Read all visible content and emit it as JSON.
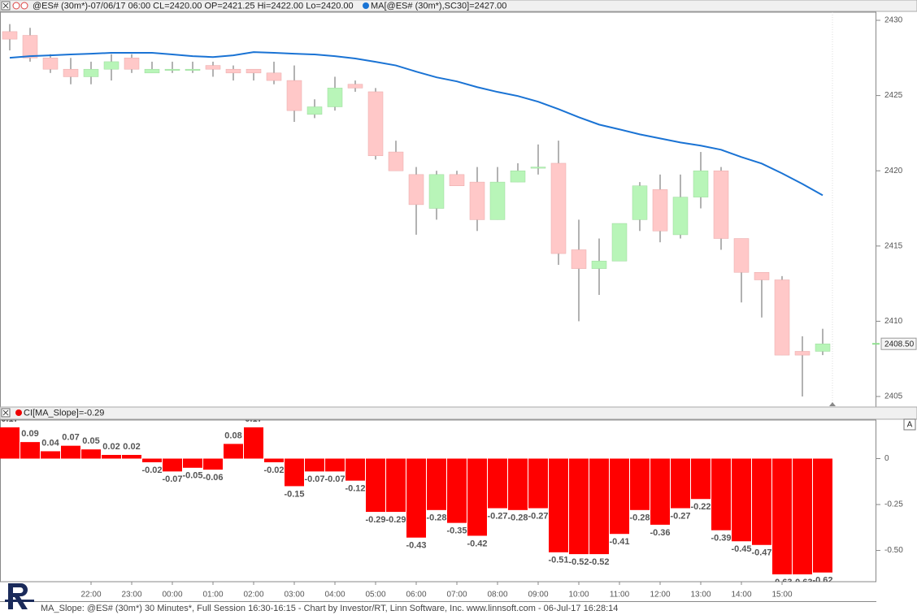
{
  "header": {
    "title": "@ES# (30m*)-07/06/17 06:00 CL=2420.00 OP=2421.25 Hi=2422.00 Lo=2420.00"
  },
  "controls": {
    "autoscale": "A"
  },
  "footer": "MA_Slope: @ES# (30m*) 30 Minutes*, Full Session 16:30-16:15 - Chart by Investor/RT, Linn Software, Inc. www.linnsoft.com - 06-Jul-17 16:28:14",
  "chart_data": [
    {
      "type": "candlestick",
      "open": [
        2429.25,
        2429.0,
        2427.5,
        2426.75,
        2426.25,
        2426.75,
        2427.5,
        2426.5,
        2426.75,
        2426.75,
        2427.0,
        2426.75,
        2426.75,
        2426.5,
        2426.0,
        2423.75,
        2424.25,
        2425.75,
        2425.25,
        2421.25,
        2419.75,
        2417.5,
        2419.75,
        2419.25,
        2416.75,
        2419.25,
        2420.25,
        2420.5,
        2414.75,
        2413.5,
        2414.0,
        2416.75,
        2418.75,
        2415.75,
        2418.25,
        2420.0,
        2415.5,
        2413.25,
        2412.75,
        2408.0,
        2408.0
      ],
      "high": [
        2429.75,
        2429.5,
        2427.75,
        2427.5,
        2427.25,
        2427.75,
        2427.75,
        2427.25,
        2427.25,
        2427.25,
        2427.25,
        2427.0,
        2426.75,
        2427.25,
        2427.0,
        2424.75,
        2426.25,
        2426.0,
        2425.5,
        2422.0,
        2420.25,
        2420.0,
        2420.0,
        2420.25,
        2420.25,
        2420.5,
        2421.75,
        2422.0,
        2416.75,
        2415.5,
        2416.5,
        2419.25,
        2419.75,
        2419.75,
        2421.25,
        2420.25,
        2415.5,
        2413.25,
        2413.0,
        2409.0,
        2409.5
      ],
      "low": [
        2428.0,
        2427.25,
        2426.5,
        2425.75,
        2425.75,
        2426.0,
        2426.5,
        2426.5,
        2426.5,
        2426.5,
        2426.25,
        2426.0,
        2426.0,
        2425.75,
        2423.25,
        2423.5,
        2424.0,
        2425.25,
        2420.75,
        2420.0,
        2415.75,
        2416.75,
        2419.0,
        2416.0,
        2416.75,
        2419.25,
        2419.75,
        2413.75,
        2410.0,
        2411.75,
        2414.0,
        2416.0,
        2415.25,
        2415.5,
        2417.5,
        2414.75,
        2411.25,
        2410.25,
        2407.75,
        2405.0,
        2407.75
      ],
      "close": [
        2428.75,
        2427.5,
        2426.75,
        2426.25,
        2426.75,
        2427.25,
        2426.75,
        2426.75,
        2426.75,
        2426.75,
        2426.75,
        2426.5,
        2426.5,
        2426.0,
        2424.0,
        2424.25,
        2425.5,
        2425.5,
        2421.0,
        2420.0,
        2417.75,
        2419.75,
        2419.0,
        2416.75,
        2419.25,
        2420.0,
        2420.25,
        2414.5,
        2413.5,
        2414.0,
        2416.5,
        2419.0,
        2416.0,
        2418.25,
        2420.0,
        2415.5,
        2413.25,
        2412.75,
        2407.75,
        2407.75,
        2408.5
      ],
      "up_color": "#b8f5b8",
      "down_color": "#ffc8c8",
      "wick_color": "#999999",
      "line": {
        "legend": "MA[@ES# (30m*),SC30]=2427.00",
        "color": "#1a73d4",
        "values": [
          2427.51,
          2427.62,
          2427.67,
          2427.73,
          2427.78,
          2427.84,
          2427.84,
          2427.84,
          2427.73,
          2427.62,
          2427.56,
          2427.67,
          2427.89,
          2427.84,
          2427.78,
          2427.73,
          2427.62,
          2427.46,
          2427.24,
          2427.0,
          2426.59,
          2426.21,
          2425.94,
          2425.56,
          2425.24,
          2424.97,
          2424.59,
          2424.1,
          2423.56,
          2423.07,
          2422.75,
          2422.42,
          2422.15,
          2421.88,
          2421.67,
          2421.4,
          2420.91,
          2420.48,
          2419.83,
          2419.13,
          2418.37
        ]
      },
      "last_price": {
        "value": 2408.5,
        "label": "2408.50",
        "color": "#8fe08f"
      },
      "ylim": [
        2404.3,
        2430.54
      ],
      "yticks": [
        2405,
        2410,
        2415,
        2420,
        2425,
        2430
      ]
    },
    {
      "type": "bar",
      "title": "CI[MA_Slope]=-0.29",
      "color": "#ff0000",
      "categories": [
        null,
        null,
        null,
        null,
        "22:00",
        null,
        "23:00",
        null,
        "00:00",
        null,
        "01:00",
        null,
        "02:00",
        null,
        "03:00",
        null,
        "04:00",
        null,
        "05:00",
        null,
        "06:00",
        null,
        "07:00",
        null,
        "08:00",
        null,
        "09:00",
        null,
        "10:00",
        null,
        "11:00",
        null,
        "12:00",
        null,
        "13:00",
        null,
        "14:00",
        null,
        "15:00",
        null,
        null
      ],
      "values": [
        0.17,
        0.09,
        0.04,
        0.07,
        0.05,
        0.02,
        0.02,
        -0.02,
        -0.07,
        -0.05,
        -0.06,
        0.08,
        0.17,
        -0.02,
        -0.15,
        -0.07,
        -0.07,
        -0.12,
        -0.29,
        -0.29,
        -0.43,
        -0.28,
        -0.35,
        -0.42,
        -0.27,
        -0.28,
        -0.27,
        -0.51,
        -0.52,
        -0.52,
        -0.41,
        -0.28,
        -0.36,
        -0.27,
        -0.22,
        -0.39,
        -0.45,
        -0.47,
        -0.63,
        -0.63,
        -0.62
      ],
      "ylim": [
        -0.67,
        0.21
      ],
      "yticks": [
        0,
        -0.25,
        {
          "value": -0.5,
          "label": "-0.50"
        }
      ]
    }
  ]
}
